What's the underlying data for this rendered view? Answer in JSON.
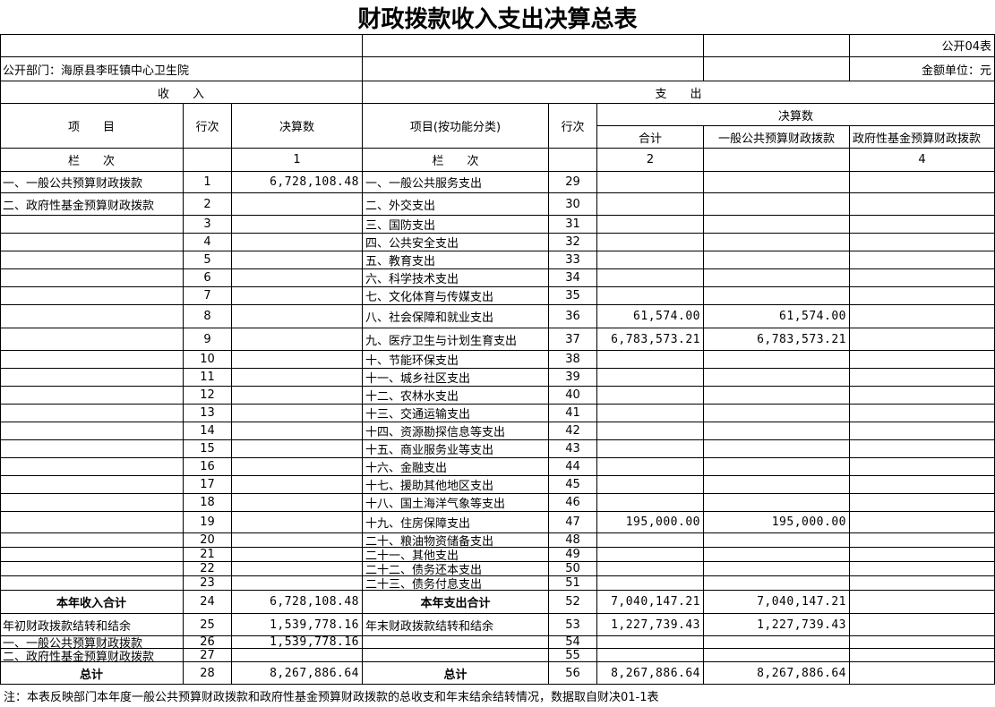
{
  "title": "财政拨款收入支出决算总表",
  "form_code": "公开04表",
  "department": "公开部门：海原县李旺镇中心卫生院",
  "unit": "金额单位：元",
  "header": {
    "income": "收　　入",
    "expense": "支　　出",
    "item": "项　　目",
    "line_no": "行次",
    "amount": "决算数",
    "expense_item": "项目(按功能分类)",
    "expense_line_no": "行次",
    "final_amount": "决算数",
    "total": "合计",
    "general": "一般公共预算财政拨款",
    "fund": "政府性基金预算财政拨款",
    "column_label": "栏　　次",
    "expense_column_label": "栏　　次",
    "col_income": "1",
    "col_total": "2",
    "col_fund": "4"
  },
  "rows": [
    [
      "一、一般公共预算财政拨款",
      1,
      "6,728,108.48",
      "一、一般公共服务支出",
      29,
      null,
      null,
      null
    ],
    [
      "二、政府性基金预算财政拨款",
      2,
      null,
      "二、外交支出",
      30,
      null,
      null,
      null
    ],
    [
      null,
      3,
      null,
      "三、国防支出",
      31,
      null,
      null,
      null
    ],
    [
      null,
      4,
      null,
      "四、公共安全支出",
      32,
      null,
      null,
      null
    ],
    [
      null,
      5,
      null,
      "五、教育支出",
      33,
      null,
      null,
      null
    ],
    [
      null,
      6,
      null,
      "六、科学技术支出",
      34,
      null,
      null,
      null
    ],
    [
      null,
      7,
      null,
      "七、文化体育与传媒支出",
      35,
      null,
      null,
      null
    ],
    [
      null,
      8,
      null,
      "八、社会保障和就业支出",
      36,
      "61,574.00",
      "61,574.00",
      null
    ],
    [
      null,
      9,
      null,
      "九、医疗卫生与计划生育支出",
      37,
      "6,783,573.21",
      "6,783,573.21",
      null
    ],
    [
      null,
      10,
      null,
      "十、节能环保支出",
      38,
      null,
      null,
      null
    ],
    [
      null,
      11,
      null,
      "十一、城乡社区支出",
      39,
      null,
      null,
      null
    ],
    [
      null,
      12,
      null,
      "十二、农林水支出",
      40,
      null,
      null,
      null
    ],
    [
      null,
      13,
      null,
      "十三、交通运输支出",
      41,
      null,
      null,
      null
    ],
    [
      null,
      14,
      null,
      "十四、资源勘探信息等支出",
      42,
      null,
      null,
      null
    ],
    [
      null,
      15,
      null,
      "十五、商业服务业等支出",
      43,
      null,
      null,
      null
    ],
    [
      null,
      16,
      null,
      "十六、金融支出",
      44,
      null,
      null,
      null
    ],
    [
      null,
      17,
      null,
      "十七、援助其他地区支出",
      45,
      null,
      null,
      null
    ],
    [
      null,
      18,
      null,
      "十八、国土海洋气象等支出",
      46,
      null,
      null,
      null
    ],
    [
      null,
      19,
      null,
      "十九、住房保障支出",
      47,
      "195,000.00",
      "195,000.00",
      null
    ],
    [
      null,
      20,
      null,
      "二十、粮油物资储备支出",
      48,
      null,
      null,
      null
    ],
    [
      null,
      21,
      null,
      "二十一、其他支出",
      49,
      null,
      null,
      null
    ],
    [
      null,
      22,
      null,
      "二十二、债务还本支出",
      50,
      null,
      null,
      null
    ],
    [
      null,
      23,
      null,
      "二十三、债务付息支出",
      51,
      null,
      null,
      null
    ],
    [
      "本年收入合计",
      24,
      "6,728,108.48",
      "本年支出合计",
      52,
      "7,040,147.21",
      "7,040,147.21",
      null
    ],
    [
      "年初财政拨款结转和结余",
      25,
      "1,539,778.16",
      "年末财政拨款结转和结余",
      53,
      "1,227,739.43",
      "1,227,739.43",
      null
    ],
    [
      "一、一般公共预算财政拨款",
      26,
      "1,539,778.16",
      null,
      54,
      null,
      null,
      null
    ],
    [
      "二、政府性基金预算财政拨款",
      27,
      null,
      null,
      55,
      null,
      null,
      null
    ],
    [
      "总计",
      28,
      "8,267,886.64",
      "总计",
      56,
      "8,267,886.64",
      "8,267,886.64",
      null
    ]
  ],
  "note": "注：本表反映部门本年度一般公共预算财政拨款和政府性基金预算财政拨款的总收支和年末结余结转情况，数据取自财决01-1表"
}
